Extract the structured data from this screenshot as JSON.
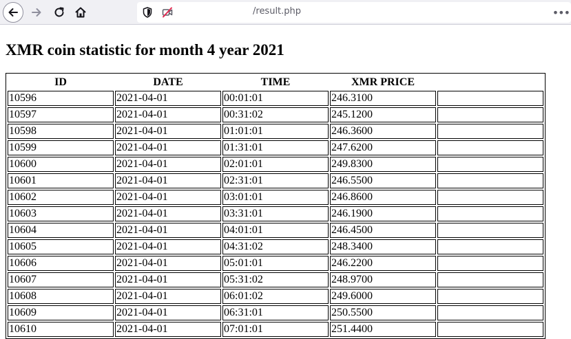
{
  "browser": {
    "url": "/result.php",
    "menu_dots": "•••"
  },
  "page": {
    "heading": "XMR coin statistic for month 4 year 2021"
  },
  "table": {
    "headers": [
      "ID",
      "DATE",
      "TIME",
      "XMR PRICE",
      ""
    ],
    "rows": [
      [
        "10596",
        "2021-04-01",
        "00:01:01",
        "246.3100",
        ""
      ],
      [
        "10597",
        "2021-04-01",
        "00:31:02",
        "245.1200",
        ""
      ],
      [
        "10598",
        "2021-04-01",
        "01:01:01",
        "246.3600",
        ""
      ],
      [
        "10599",
        "2021-04-01",
        "01:31:01",
        "247.6200",
        ""
      ],
      [
        "10600",
        "2021-04-01",
        "02:01:01",
        "249.8300",
        ""
      ],
      [
        "10601",
        "2021-04-01",
        "02:31:01",
        "246.5500",
        ""
      ],
      [
        "10602",
        "2021-04-01",
        "03:01:01",
        "246.8600",
        ""
      ],
      [
        "10603",
        "2021-04-01",
        "03:31:01",
        "246.1900",
        ""
      ],
      [
        "10604",
        "2021-04-01",
        "04:01:01",
        "246.4500",
        ""
      ],
      [
        "10605",
        "2021-04-01",
        "04:31:02",
        "248.3400",
        ""
      ],
      [
        "10606",
        "2021-04-01",
        "05:01:01",
        "246.2200",
        ""
      ],
      [
        "10607",
        "2021-04-01",
        "05:31:02",
        "248.9700",
        ""
      ],
      [
        "10608",
        "2021-04-01",
        "06:01:02",
        "249.6000",
        ""
      ],
      [
        "10609",
        "2021-04-01",
        "06:31:01",
        "250.5500",
        ""
      ],
      [
        "10610",
        "2021-04-01",
        "07:01:01",
        "251.4400",
        ""
      ]
    ]
  }
}
